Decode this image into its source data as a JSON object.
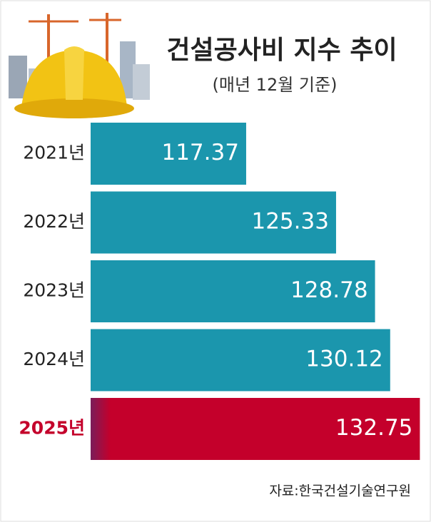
{
  "chart_data": {
    "type": "bar",
    "orientation": "horizontal",
    "title": "건설공사비 지수 추이",
    "subtitle": "(매년 12월 기준)",
    "source": "자료:한국건설기술연구원",
    "categories": [
      "2021년",
      "2022년",
      "2023년",
      "2024년",
      "2025년"
    ],
    "values": [
      117.37,
      125.33,
      128.78,
      130.12,
      132.75
    ],
    "colors": [
      "#1b96ad",
      "#1b96ad",
      "#1b96ad",
      "#1b96ad",
      "#c4002b"
    ],
    "xlim": [
      103.6,
      132.85
    ]
  }
}
